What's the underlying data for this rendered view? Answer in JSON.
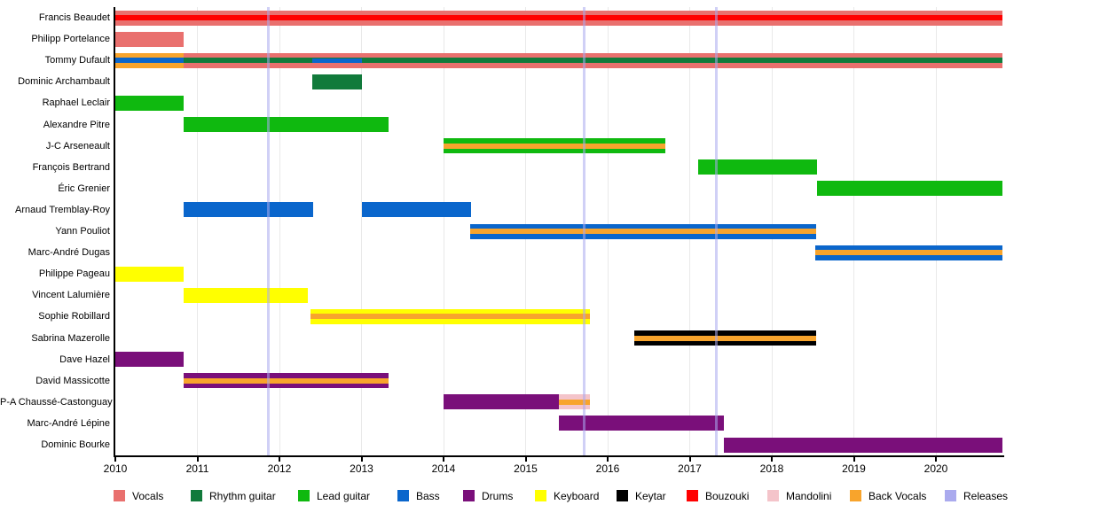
{
  "chart_data": {
    "type": "bar",
    "variant": "band-member-timeline-gantt",
    "title": "",
    "xlabel": "",
    "ylabel": "",
    "grid": "vertical-year-gridlines",
    "legend_position": "bottom",
    "x_axis": {
      "min": 2010,
      "max": 2020.81,
      "ticks": [
        2010,
        2011,
        2012,
        2013,
        2014,
        2015,
        2016,
        2017,
        2018,
        2019,
        2020
      ]
    },
    "releases": [
      2011.86,
      2015.71,
      2017.32
    ],
    "legend": [
      {
        "key": "vocals",
        "label": "Vocals",
        "color": "#E9706E"
      },
      {
        "key": "rhythm_guitar",
        "label": "Rhythm guitar",
        "color": "#117A3B"
      },
      {
        "key": "lead_guitar",
        "label": "Lead guitar",
        "color": "#0FB90F"
      },
      {
        "key": "bass",
        "label": "Bass",
        "color": "#0A66CC"
      },
      {
        "key": "drums",
        "label": "Drums",
        "color": "#7A0F7A"
      },
      {
        "key": "keyboard",
        "label": "Keyboard",
        "color": "#FFFF00"
      },
      {
        "key": "keytar",
        "label": "Keytar",
        "color": "#000000"
      },
      {
        "key": "bouzouki",
        "label": "Bouzouki",
        "color": "#FF0000"
      },
      {
        "key": "mandolini",
        "label": "Mandolini",
        "color": "#F4C4CA"
      },
      {
        "key": "back_vocals",
        "label": "Back Vocals",
        "color": "#F8A42C"
      },
      {
        "key": "releases",
        "label": "Releases",
        "color": "#AAAAEE"
      }
    ],
    "members": [
      {
        "name": "Francis Beaudet",
        "bars": [
          {
            "from": 2010.0,
            "to": 2020.81,
            "instrument": "vocals",
            "size": "full"
          },
          {
            "from": 2010.0,
            "to": 2020.81,
            "instrument": "bouzouki",
            "size": "stripe"
          }
        ]
      },
      {
        "name": "Philipp Portelance",
        "bars": [
          {
            "from": 2010.0,
            "to": 2010.83,
            "instrument": "vocals",
            "size": "full"
          }
        ]
      },
      {
        "name": "Tommy Dufault",
        "bars": [
          {
            "from": 2010.0,
            "to": 2010.83,
            "instrument": "back_vocals",
            "size": "full"
          },
          {
            "from": 2010.0,
            "to": 2010.83,
            "instrument": "bass",
            "size": "stripe"
          },
          {
            "from": 2010.83,
            "to": 2020.81,
            "instrument": "vocals",
            "size": "full"
          },
          {
            "from": 2010.83,
            "to": 2020.81,
            "instrument": "rhythm_guitar",
            "size": "stripe"
          },
          {
            "from": 2012.4,
            "to": 2013.0,
            "instrument": "bass",
            "size": "thin"
          }
        ]
      },
      {
        "name": "Dominic Archambault",
        "bars": [
          {
            "from": 2012.4,
            "to": 2013.0,
            "instrument": "rhythm_guitar",
            "size": "full"
          }
        ]
      },
      {
        "name": "Raphael Leclair",
        "bars": [
          {
            "from": 2010.0,
            "to": 2010.83,
            "instrument": "lead_guitar",
            "size": "full"
          }
        ]
      },
      {
        "name": "Alexandre Pitre",
        "bars": [
          {
            "from": 2010.83,
            "to": 2013.33,
            "instrument": "lead_guitar",
            "size": "full"
          }
        ]
      },
      {
        "name": "J-C Arseneault",
        "bars": [
          {
            "from": 2014.0,
            "to": 2016.7,
            "instrument": "lead_guitar",
            "size": "full"
          },
          {
            "from": 2014.0,
            "to": 2016.7,
            "instrument": "back_vocals",
            "size": "stripe"
          }
        ]
      },
      {
        "name": "François Bertrand",
        "bars": [
          {
            "from": 2017.1,
            "to": 2018.55,
            "instrument": "lead_guitar",
            "size": "full"
          }
        ]
      },
      {
        "name": "Éric Grenier",
        "bars": [
          {
            "from": 2018.55,
            "to": 2020.81,
            "instrument": "lead_guitar",
            "size": "full"
          }
        ]
      },
      {
        "name": "Arnaud Tremblay-Roy",
        "bars": [
          {
            "from": 2010.83,
            "to": 2012.41,
            "instrument": "bass",
            "size": "full"
          },
          {
            "from": 2013.0,
            "to": 2014.33,
            "instrument": "bass",
            "size": "full"
          }
        ]
      },
      {
        "name": "Yann Pouliot",
        "bars": [
          {
            "from": 2014.32,
            "to": 2018.54,
            "instrument": "bass",
            "size": "full"
          },
          {
            "from": 2014.32,
            "to": 2018.54,
            "instrument": "back_vocals",
            "size": "stripe"
          }
        ]
      },
      {
        "name": "Marc-André Dugas",
        "bars": [
          {
            "from": 2018.53,
            "to": 2020.81,
            "instrument": "bass",
            "size": "full"
          },
          {
            "from": 2018.53,
            "to": 2020.81,
            "instrument": "back_vocals",
            "size": "stripe"
          }
        ]
      },
      {
        "name": "Philippe Pageau",
        "bars": [
          {
            "from": 2010.0,
            "to": 2010.83,
            "instrument": "keyboard",
            "size": "full"
          }
        ]
      },
      {
        "name": "Vincent Lalumière",
        "bars": [
          {
            "from": 2010.83,
            "to": 2012.35,
            "instrument": "keyboard",
            "size": "full"
          }
        ]
      },
      {
        "name": "Sophie Robillard",
        "bars": [
          {
            "from": 2012.38,
            "to": 2015.78,
            "instrument": "keyboard",
            "size": "full"
          },
          {
            "from": 2012.38,
            "to": 2015.78,
            "instrument": "back_vocals",
            "size": "stripe"
          }
        ]
      },
      {
        "name": "Sabrina Mazerolle",
        "bars": [
          {
            "from": 2016.32,
            "to": 2018.54,
            "instrument": "keytar",
            "size": "full"
          },
          {
            "from": 2016.32,
            "to": 2018.54,
            "instrument": "back_vocals",
            "size": "stripe"
          }
        ]
      },
      {
        "name": "Dave Hazel",
        "bars": [
          {
            "from": 2010.0,
            "to": 2010.83,
            "instrument": "drums",
            "size": "full"
          }
        ]
      },
      {
        "name": "David Massicotte",
        "bars": [
          {
            "from": 2010.83,
            "to": 2013.33,
            "instrument": "drums",
            "size": "full"
          },
          {
            "from": 2010.83,
            "to": 2013.33,
            "instrument": "back_vocals",
            "size": "stripe"
          }
        ]
      },
      {
        "name": "P-A Chaussé-Castonguay",
        "bars": [
          {
            "from": 2014.0,
            "to": 2015.41,
            "instrument": "drums",
            "size": "full"
          },
          {
            "from": 2015.41,
            "to": 2015.78,
            "instrument": "mandolini",
            "size": "full"
          },
          {
            "from": 2015.41,
            "to": 2015.78,
            "instrument": "back_vocals",
            "size": "stripe"
          }
        ]
      },
      {
        "name": "Marc-André Lépine",
        "bars": [
          {
            "from": 2015.41,
            "to": 2017.42,
            "instrument": "drums",
            "size": "full"
          }
        ]
      },
      {
        "name": "Dominic Bourke",
        "bars": [
          {
            "from": 2017.42,
            "to": 2020.81,
            "instrument": "drums",
            "size": "full"
          }
        ]
      }
    ]
  }
}
